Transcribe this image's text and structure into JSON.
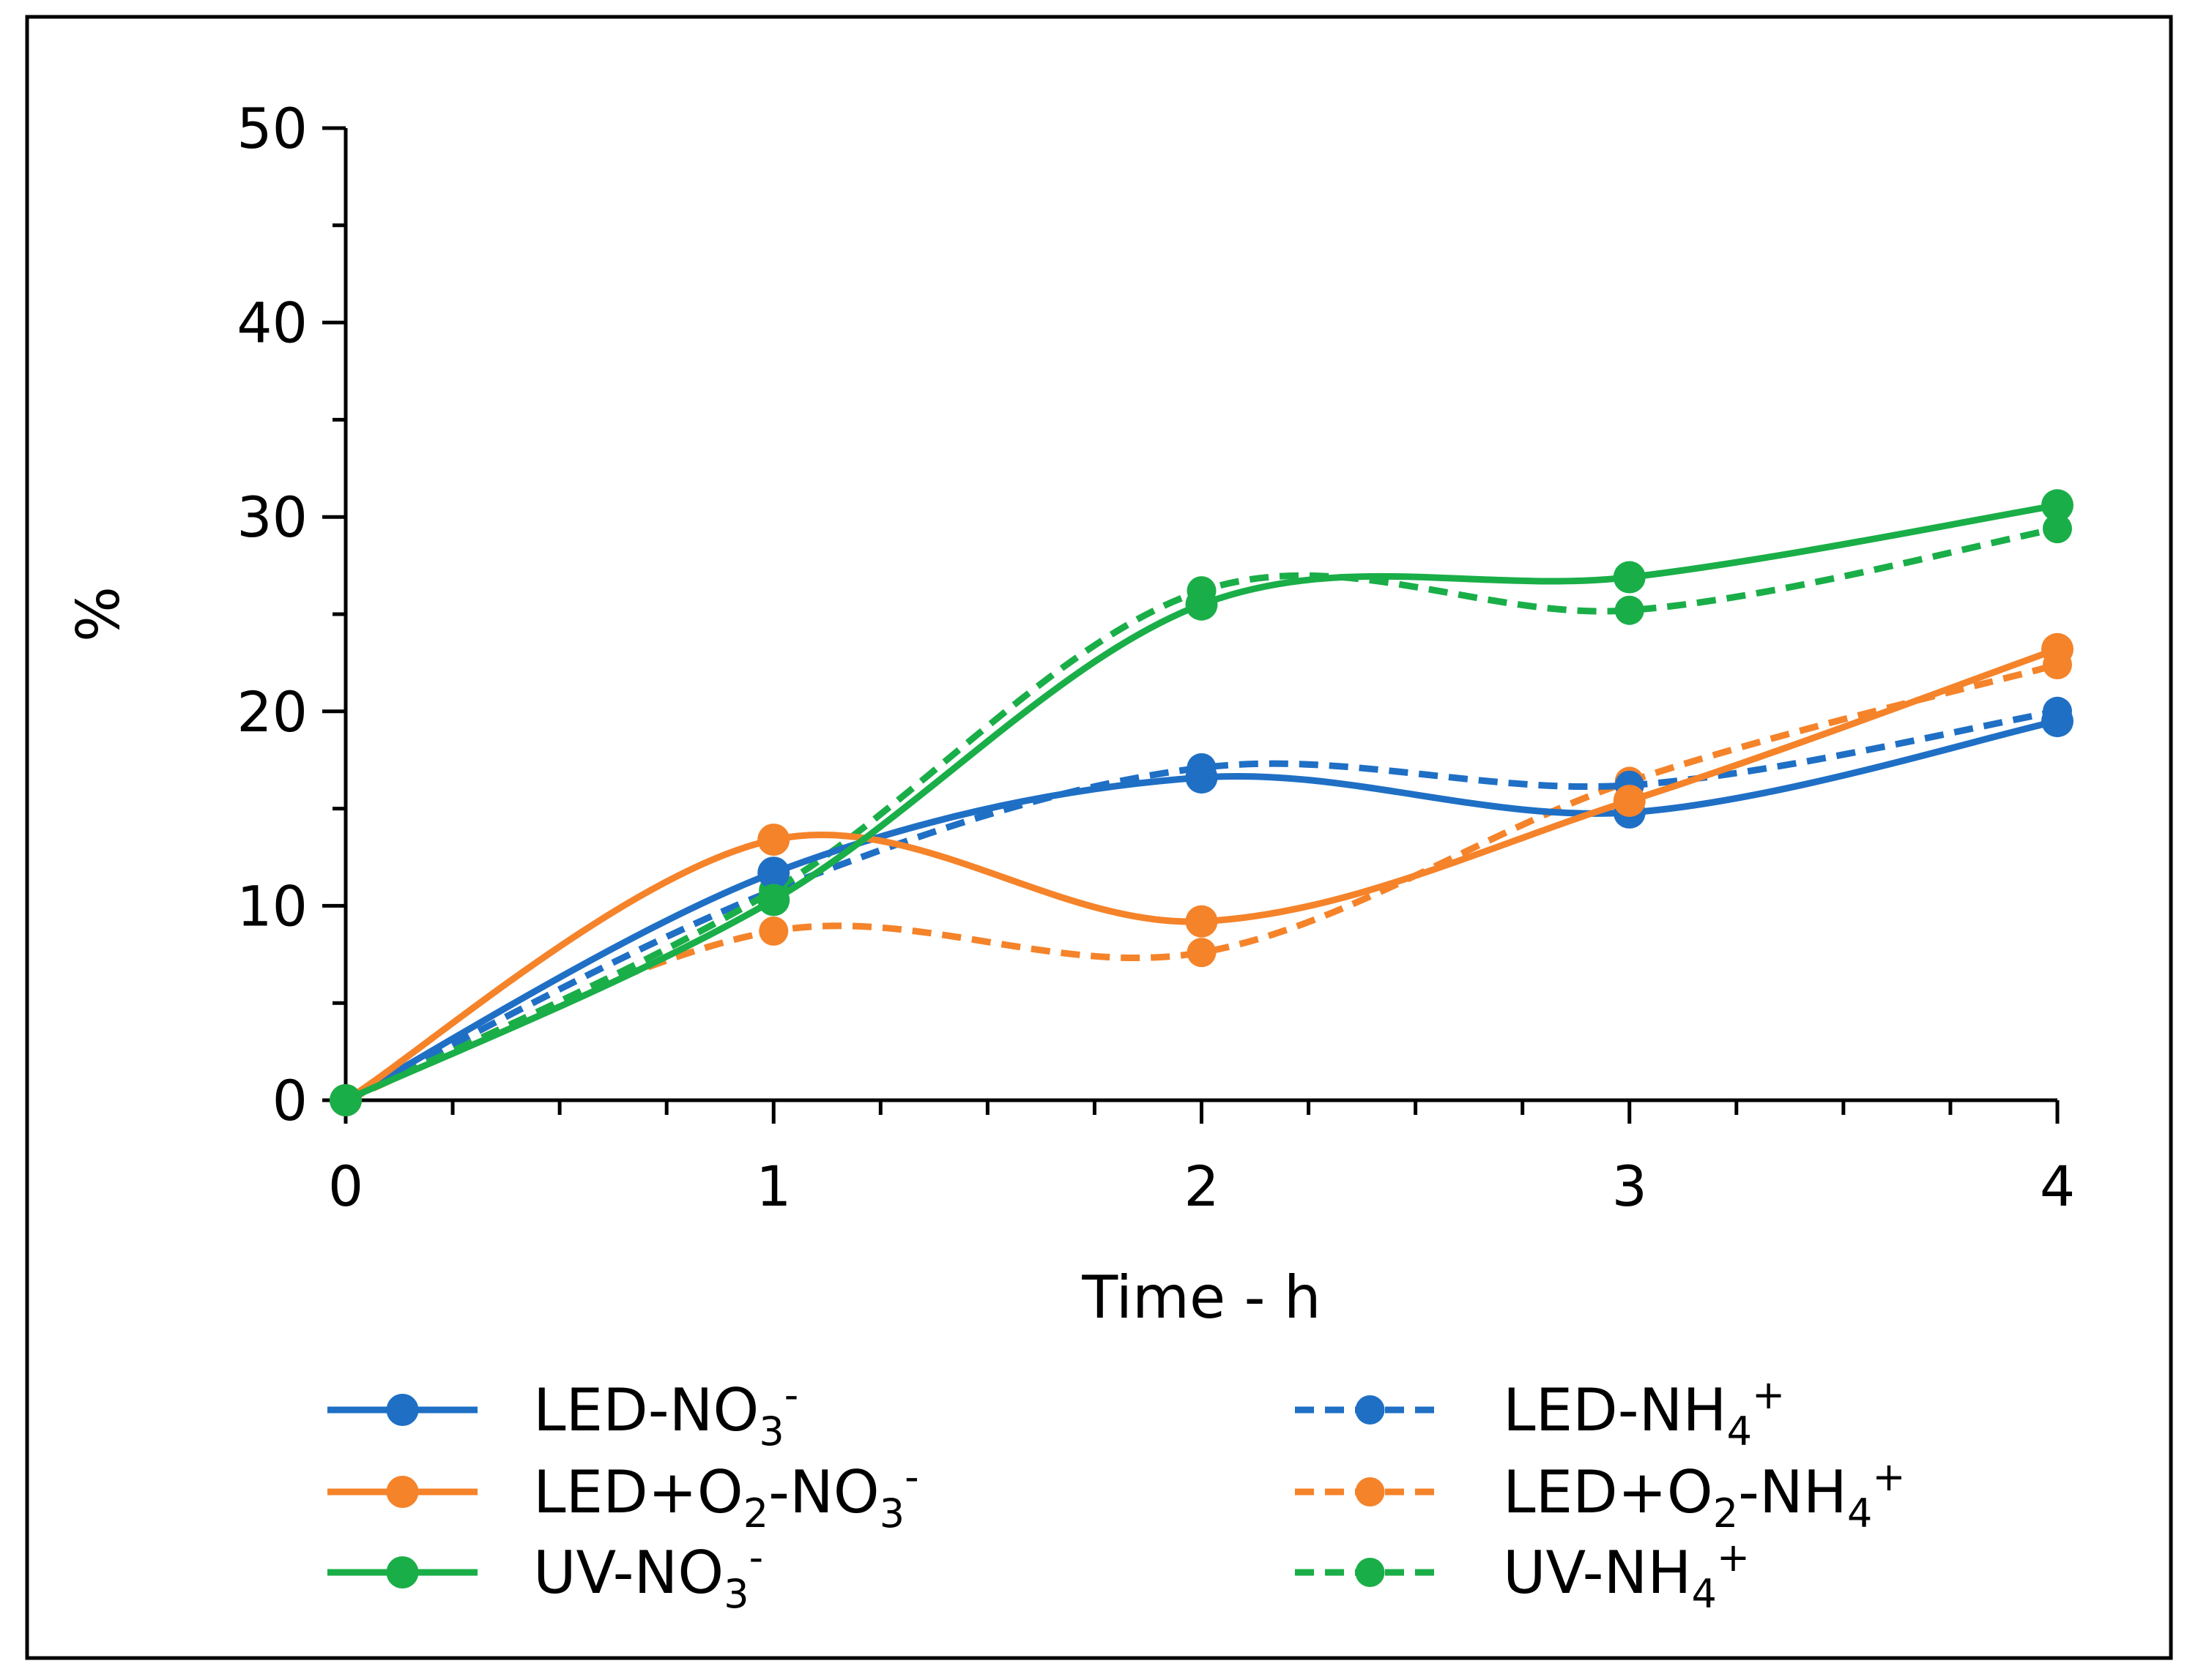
{
  "chart_data": {
    "type": "line",
    "title": "",
    "xlabel": "Time - h",
    "ylabel": "%",
    "xlim": [
      0,
      4
    ],
    "ylim": [
      0,
      50
    ],
    "x_ticks": [
      0,
      1,
      2,
      3,
      4
    ],
    "y_ticks": [
      0,
      10,
      20,
      30,
      40,
      50
    ],
    "x_tick_labels": [
      "0",
      "1",
      "2",
      "3",
      "4"
    ],
    "y_tick_labels": [
      "0",
      "10",
      "20",
      "30",
      "40",
      "50"
    ],
    "grid": false,
    "legend_position": "bottom",
    "x": [
      0,
      1,
      2,
      3,
      4
    ],
    "series": [
      {
        "name": "LED-NO3-",
        "label_main": "LED-NO",
        "sub": "3",
        "sup": "-",
        "color": "#1f6fc5",
        "style": "solid",
        "values": [
          0,
          11.7,
          16.6,
          14.8,
          19.5
        ]
      },
      {
        "name": "LED+O2-NO3-",
        "label_main": "LED+O",
        "sub": "2",
        "label_mid": "-NO",
        "sub2": "3",
        "sup": "-",
        "color": "#f5832a",
        "style": "solid",
        "values": [
          0,
          13.4,
          9.2,
          15.4,
          23.2
        ]
      },
      {
        "name": "UV-NO3-",
        "label_main": "UV-NO",
        "sub": "3",
        "sup": "-",
        "color": "#1aae48",
        "style": "solid",
        "values": [
          0,
          10.3,
          25.5,
          26.9,
          30.6
        ]
      },
      {
        "name": "LED-NH4+",
        "label_main": "LED-NH",
        "sub": "4",
        "sup": "+",
        "color": "#1f6fc5",
        "style": "dashed",
        "values": [
          0,
          10.8,
          17.1,
          16.2,
          20.0
        ]
      },
      {
        "name": "LED+O2-NH4+",
        "label_main": "LED+O",
        "sub": "2",
        "label_mid": "-NH",
        "sub2": "4",
        "sup": "+",
        "color": "#f5832a",
        "style": "dashed",
        "values": [
          0,
          8.7,
          7.6,
          16.4,
          22.4
        ]
      },
      {
        "name": "UV-NH4+",
        "label_main": "UV-NH",
        "sub": "4",
        "sup": "+",
        "color": "#1aae48",
        "style": "dashed",
        "values": [
          0,
          10.8,
          26.2,
          25.2,
          29.4
        ]
      }
    ]
  }
}
